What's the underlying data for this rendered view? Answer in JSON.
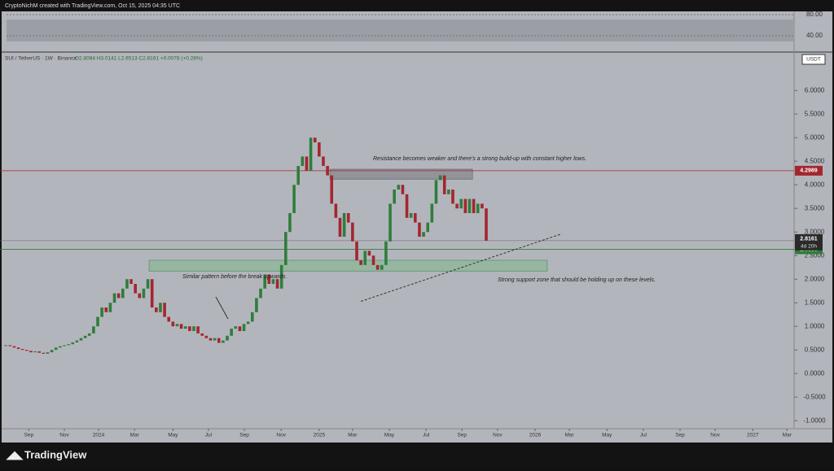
{
  "header": {
    "credit": "CryptoNichM created with TradingView.com, Oct 15, 2025 04:35 UTC",
    "logo": "TradingView"
  },
  "rsi": {
    "ylim": [
      12.3,
      86.2
    ],
    "yticks": [
      {
        "value": 80,
        "label": "80.00"
      },
      {
        "value": 40,
        "label": "40.00"
      }
    ]
  },
  "chart_data": {
    "type": "candlestick",
    "title": "SUI / TetherUS · 1W · Binance",
    "ohlc": "O2.8084 H3.0141 L2.6513 C2.8161 +0.0078 (+0.28%)",
    "currency": "USDT",
    "colors": {
      "up": "#2f7d3a",
      "down": "#a3262f"
    },
    "x": [
      0,
      1,
      2,
      3,
      4,
      5,
      6,
      7,
      8,
      9,
      10,
      11,
      12,
      13,
      14,
      15,
      16,
      17,
      18,
      19,
      20,
      21,
      22,
      23,
      24,
      25,
      26,
      27,
      28,
      29,
      30,
      31,
      32,
      33,
      34,
      35,
      36,
      37,
      38,
      39,
      40,
      41,
      42,
      43,
      44,
      45,
      46,
      47,
      48,
      49,
      50,
      51,
      52,
      53,
      54,
      55,
      56,
      57,
      58,
      59,
      60,
      61,
      62,
      63,
      64,
      65,
      66,
      67,
      68,
      69,
      70,
      71,
      72,
      73,
      74,
      75,
      76,
      77,
      78,
      79,
      80,
      81,
      82,
      83,
      84,
      85,
      86,
      87,
      88,
      89,
      90,
      91,
      92,
      93,
      94,
      95,
      96,
      97,
      98,
      99,
      100,
      101,
      102,
      103,
      104,
      105,
      106,
      107,
      108,
      109,
      110,
      111,
      112,
      113,
      114,
      115
    ],
    "values": [
      0.6,
      0.58,
      0.55,
      0.52,
      0.5,
      0.48,
      0.45,
      0.47,
      0.44,
      0.42,
      0.45,
      0.5,
      0.55,
      0.58,
      0.6,
      0.62,
      0.66,
      0.7,
      0.75,
      0.8,
      0.85,
      1.0,
      1.2,
      1.4,
      1.3,
      1.5,
      1.7,
      1.6,
      1.8,
      2.0,
      1.9,
      1.7,
      1.6,
      1.8,
      2.0,
      1.4,
      1.3,
      1.5,
      1.2,
      1.1,
      1.0,
      1.05,
      0.95,
      1.0,
      0.9,
      1.0,
      0.85,
      0.8,
      0.75,
      0.7,
      0.75,
      0.65,
      0.7,
      0.8,
      0.95,
      1.0,
      0.9,
      1.05,
      1.1,
      1.3,
      1.6,
      1.8,
      2.1,
      1.9,
      2.0,
      1.8,
      2.3,
      3.0,
      3.4,
      4.0,
      4.4,
      4.6,
      4.3,
      5.0,
      4.9,
      4.6,
      4.4,
      4.2,
      3.6,
      3.3,
      2.9,
      3.4,
      3.2,
      2.8,
      2.4,
      2.3,
      2.6,
      2.5,
      2.3,
      2.2,
      2.3,
      2.8,
      3.6,
      3.9,
      4.0,
      3.8,
      3.3,
      3.4,
      3.2,
      2.9,
      3.0,
      3.2,
      3.6,
      4.1,
      4.2,
      3.8,
      3.9,
      3.6,
      3.5,
      3.7,
      3.4,
      3.7,
      3.4,
      3.6,
      3.5,
      2.8161
    ],
    "xlim": [
      -1.4,
      188.7
    ],
    "xticks": [
      {
        "value": 5.5,
        "label": "Sep"
      },
      {
        "value": 14.0,
        "label": "Nov"
      },
      {
        "value": 22.2,
        "label": "2024"
      },
      {
        "value": 30.8,
        "label": "Mar"
      },
      {
        "value": 40.0,
        "label": "May"
      },
      {
        "value": 48.5,
        "label": "Jul"
      },
      {
        "value": 57.1,
        "label": "Sep"
      },
      {
        "value": 65.9,
        "label": "Nov"
      },
      {
        "value": 75.0,
        "label": "2025"
      },
      {
        "value": 83.0,
        "label": "Mar"
      },
      {
        "value": 91.8,
        "label": "May"
      },
      {
        "value": 100.6,
        "label": "Jul"
      },
      {
        "value": 109.2,
        "label": "Sep"
      },
      {
        "value": 117.7,
        "label": "Nov"
      },
      {
        "value": 126.7,
        "label": "2026"
      },
      {
        "value": 134.9,
        "label": "Mar"
      },
      {
        "value": 143.9,
        "label": "May"
      },
      {
        "value": 152.6,
        "label": "Jul"
      },
      {
        "value": 161.4,
        "label": "Sep"
      },
      {
        "value": 169.8,
        "label": "Nov"
      },
      {
        "value": 178.8,
        "label": "2027"
      },
      {
        "value": 187.0,
        "label": "Mar"
      }
    ],
    "ylim": [
      -1.17,
      6.78
    ],
    "yticks": [
      {
        "value": 6,
        "label": "6.0000"
      },
      {
        "value": 5.5,
        "label": "5.5000"
      },
      {
        "value": 5,
        "label": "5.0000"
      },
      {
        "value": 4.5,
        "label": "4.5000"
      },
      {
        "value": 4,
        "label": "4.0000"
      },
      {
        "value": 3.5,
        "label": "3.5000"
      },
      {
        "value": 3,
        "label": "3.0000"
      },
      {
        "value": 2.5,
        "label": "2.5000"
      },
      {
        "value": 2,
        "label": "2.0000"
      },
      {
        "value": 1.5,
        "label": "1.5000"
      },
      {
        "value": 1,
        "label": "1.0000"
      },
      {
        "value": 0.5,
        "label": "0.5000"
      },
      {
        "value": 0,
        "label": "0.0000"
      },
      {
        "value": -0.5,
        "label": "-0.5000"
      },
      {
        "value": -1,
        "label": "-1.0000"
      }
    ],
    "resistance_line": 4.2989,
    "support_line": 2.6338,
    "last_price": 2.8161,
    "countdown": "4d 20h",
    "zones": [
      {
        "x": [
          77.6,
          111.7
        ],
        "y": [
          4.12,
          4.33
        ]
      },
      {
        "x": [
          34.3,
          129.6
        ],
        "y": [
          2.17,
          2.4
        ]
      }
    ],
    "trendline": {
      "x": [
        85.0,
        132.7
      ],
      "y": [
        1.53,
        2.95
      ]
    },
    "annotations": [
      "Resistance becomes weaker and there's a strong build-up with constant higher lows.",
      "Similar pattern before the break upwards.",
      "Strong support zone that should be holding up on these levels."
    ]
  }
}
